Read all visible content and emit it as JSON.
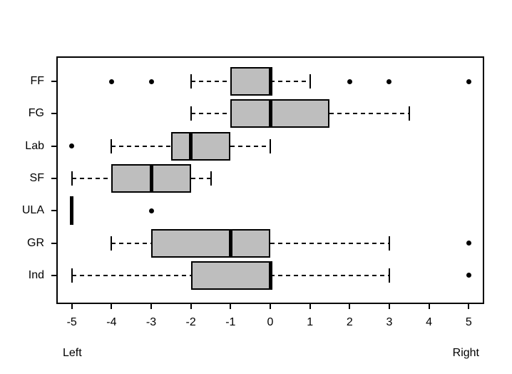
{
  "figure": {
    "background": "#ffffff",
    "line_color": "#000000",
    "box_fill": "#bebebe"
  },
  "chart_data": {
    "type": "boxplot",
    "orientation": "horizontal",
    "title": "",
    "xlabel": "",
    "ylabel": "",
    "xlim": [
      -5.4,
      5.4
    ],
    "grid": false,
    "x_ticks": [
      -5,
      -4,
      -3,
      -2,
      -1,
      0,
      1,
      2,
      3,
      4,
      5
    ],
    "x_axis_left_label": "Left",
    "x_axis_right_label": "Right",
    "categories": [
      "FF",
      "FG",
      "Lab",
      "SF",
      "ULA",
      "GR",
      "Ind"
    ],
    "series": [
      {
        "name": "FF",
        "whisker_low": -2,
        "q1": -1,
        "median": 0,
        "q3": 0,
        "whisker_high": 1,
        "outliers": [
          -4,
          -3,
          2,
          3,
          5
        ]
      },
      {
        "name": "FG",
        "whisker_low": -2,
        "q1": -1,
        "median": 0,
        "q3": 1.5,
        "whisker_high": 3.5,
        "outliers": []
      },
      {
        "name": "Lab",
        "whisker_low": -4,
        "q1": -2.5,
        "median": -2,
        "q3": -1,
        "whisker_high": 0,
        "outliers": [
          -5
        ]
      },
      {
        "name": "SF",
        "whisker_low": -5,
        "q1": -4,
        "median": -3,
        "q3": -2,
        "whisker_high": -1.5,
        "outliers": []
      },
      {
        "name": "ULA",
        "whisker_low": -5,
        "q1": -5,
        "median": -5,
        "q3": -5,
        "whisker_high": -5,
        "outliers": [
          -3
        ]
      },
      {
        "name": "GR",
        "whisker_low": -4,
        "q1": -3,
        "median": -1,
        "q3": 0,
        "whisker_high": 3,
        "outliers": [
          5
        ]
      },
      {
        "name": "Ind",
        "whisker_low": -5,
        "q1": -2,
        "median": 0,
        "q3": 0,
        "whisker_high": 3,
        "outliers": [
          5
        ]
      }
    ]
  }
}
